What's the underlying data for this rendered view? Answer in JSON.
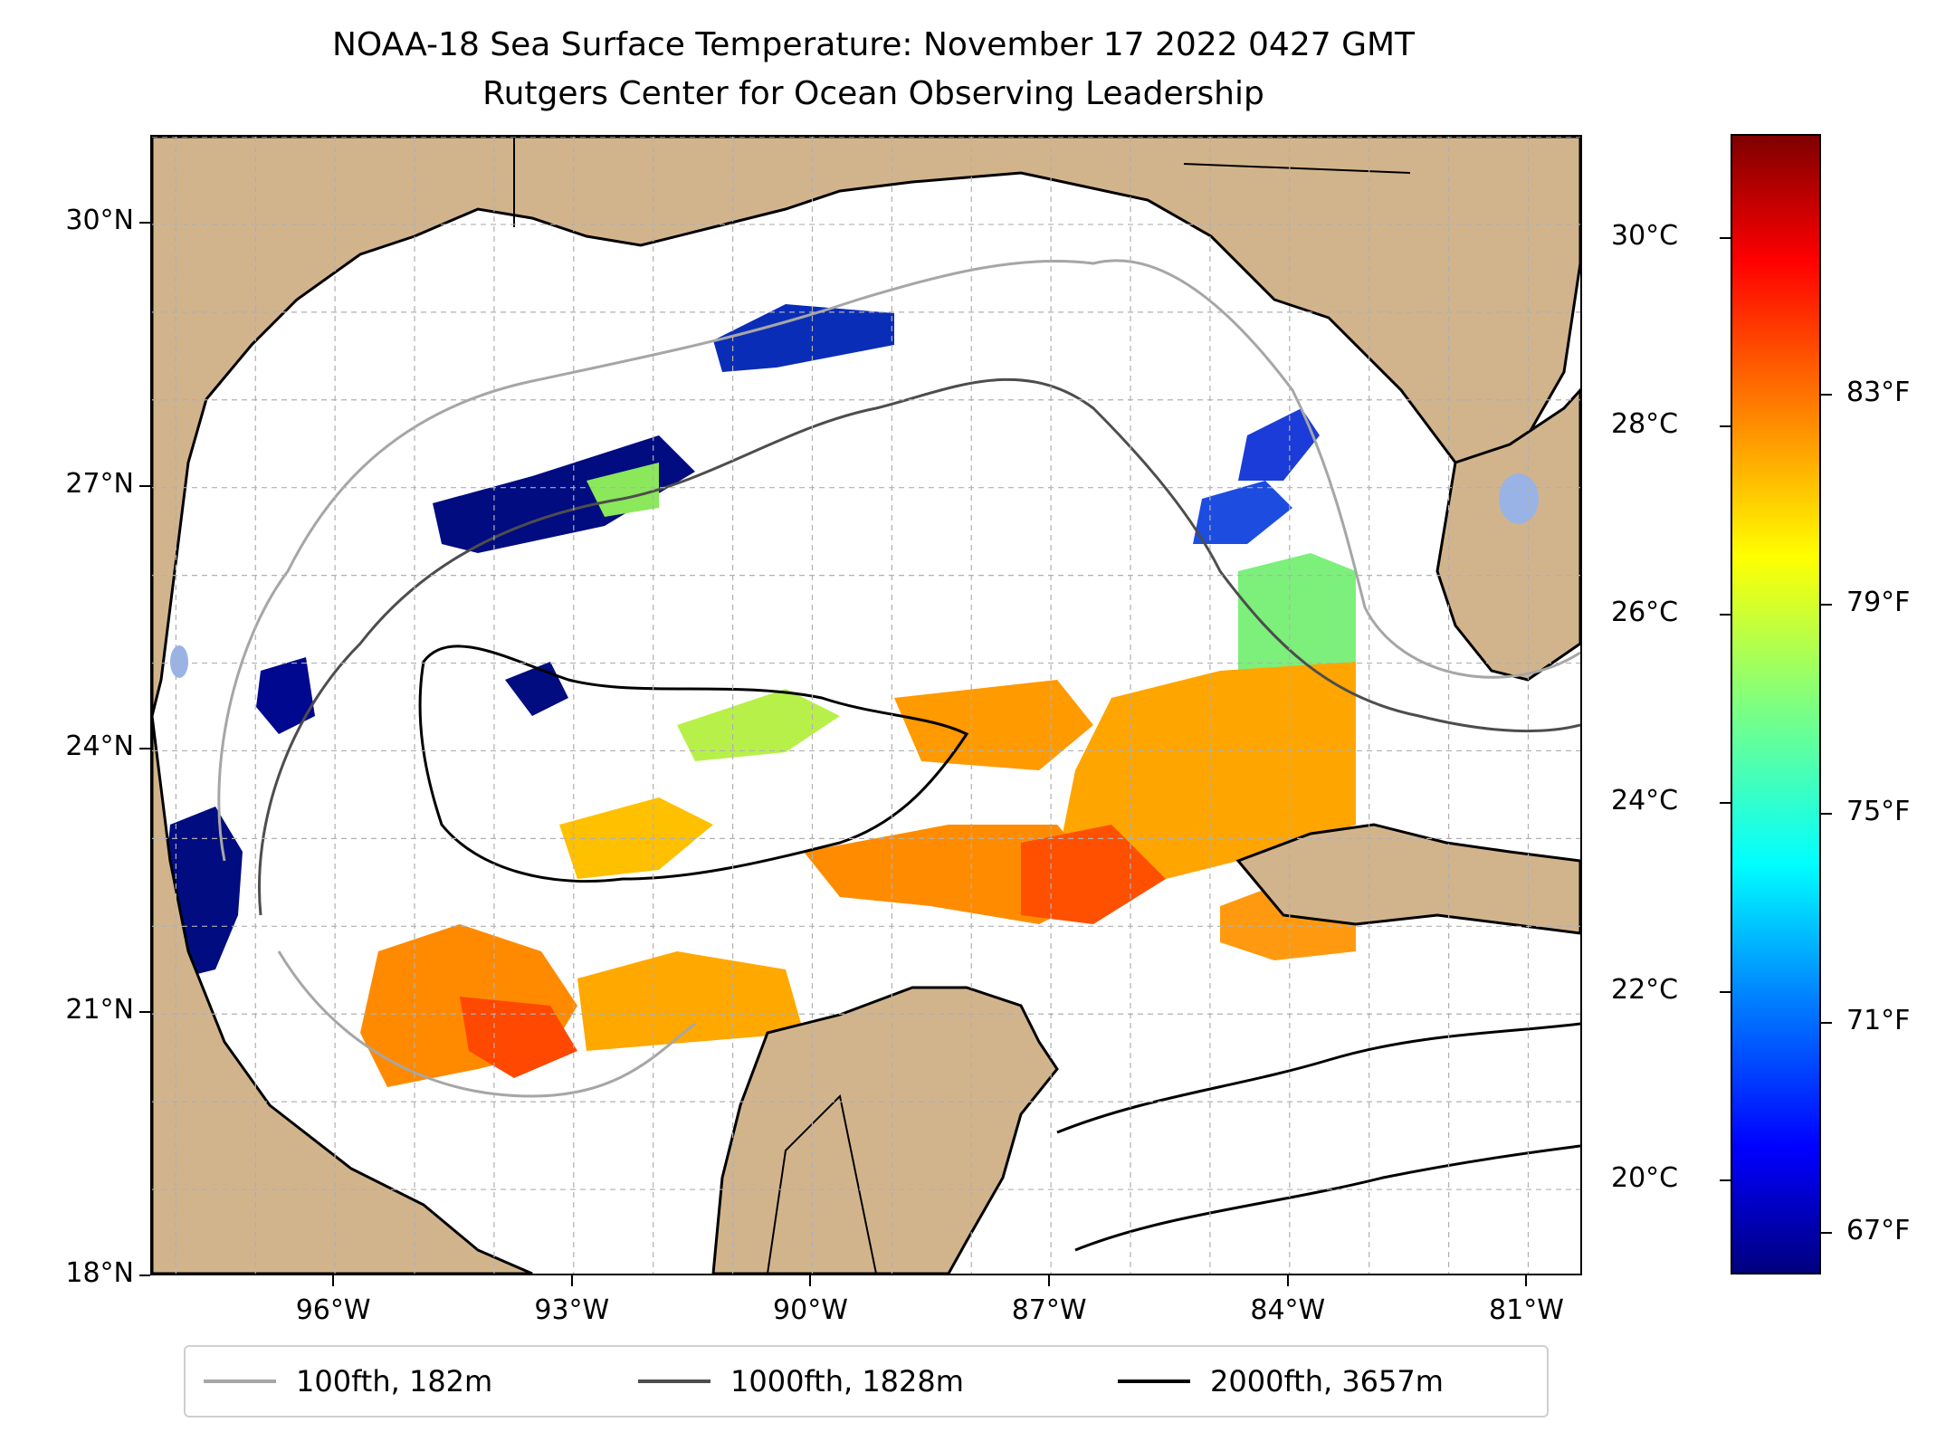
{
  "title": "NOAA-18 Sea Surface Temperature: November 17 2022 0427 GMT",
  "subtitle": "Rutgers Center for Ocean Observing Leadership",
  "colors": {
    "land": "#d2b48c",
    "lakes": "#99b3e6",
    "grid": "#b0b0b0",
    "contour_100": "#a6a6a6",
    "contour_1000": "#4d4d4d",
    "contour_2000": "#000000"
  },
  "map": {
    "lat_range": [
      18,
      31
    ],
    "lon_range": [
      -98.3,
      -80.3
    ],
    "lat_ticks": [
      {
        "value": 30,
        "label": "30°N"
      },
      {
        "value": 27,
        "label": "27°N"
      },
      {
        "value": 24,
        "label": "24°N"
      },
      {
        "value": 21,
        "label": "21°N"
      },
      {
        "value": 18,
        "label": "18°N"
      }
    ],
    "lon_ticks": [
      {
        "value": -96,
        "label": "96°W"
      },
      {
        "value": -93,
        "label": "93°W"
      },
      {
        "value": -90,
        "label": "90°W"
      },
      {
        "value": -87,
        "label": "87°W"
      },
      {
        "value": -84,
        "label": "84°W"
      },
      {
        "value": -81,
        "label": "81°W"
      }
    ]
  },
  "colorbar": {
    "colormap": "jet",
    "range_c": [
      19.0,
      31.1
    ],
    "celsius_ticks": [
      {
        "value": 30,
        "label": "30°C"
      },
      {
        "value": 28,
        "label": "28°C"
      },
      {
        "value": 26,
        "label": "26°C"
      },
      {
        "value": 24,
        "label": "24°C"
      },
      {
        "value": 22,
        "label": "22°C"
      },
      {
        "value": 20,
        "label": "20°C"
      }
    ],
    "fahrenheit_ticks": [
      {
        "value": 83,
        "label": "83°F"
      },
      {
        "value": 79,
        "label": "79°F"
      },
      {
        "value": 75,
        "label": "75°F"
      },
      {
        "value": 71,
        "label": "71°F"
      },
      {
        "value": 67,
        "label": "67°F"
      }
    ]
  },
  "legend": [
    {
      "label": "100fth, 182m",
      "color": "#a6a6a6"
    },
    {
      "label": "1000fth, 1828m",
      "color": "#4d4d4d"
    },
    {
      "label": "2000fth, 3657m",
      "color": "#000000"
    }
  ]
}
